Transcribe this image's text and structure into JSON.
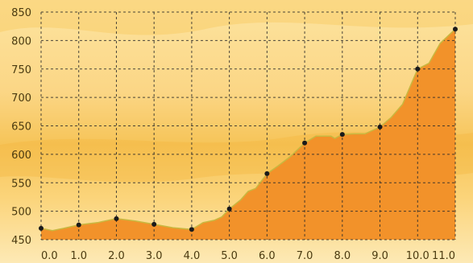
{
  "chart_data": {
    "type": "area",
    "title": "",
    "xlabel": "",
    "ylabel": "",
    "x_ticks": [
      "0.0",
      "1.0",
      "2.0",
      "3.0",
      "4.0",
      "5.0",
      "6.0",
      "7.0",
      "8.0",
      "9.0",
      "10.0",
      "11.0"
    ],
    "y_ticks": [
      "450",
      "500",
      "550",
      "600",
      "650",
      "700",
      "750",
      "800",
      "850"
    ],
    "xlim": [
      0,
      11
    ],
    "ylim": [
      450,
      850
    ],
    "grid": true,
    "legend": "none",
    "profile": [
      {
        "x": 0.0,
        "y": 470
      },
      {
        "x": 0.3,
        "y": 466
      },
      {
        "x": 0.6,
        "y": 470
      },
      {
        "x": 1.0,
        "y": 476
      },
      {
        "x": 1.5,
        "y": 480
      },
      {
        "x": 2.0,
        "y": 487
      },
      {
        "x": 2.5,
        "y": 483
      },
      {
        "x": 3.0,
        "y": 477
      },
      {
        "x": 3.5,
        "y": 471
      },
      {
        "x": 4.0,
        "y": 468
      },
      {
        "x": 4.3,
        "y": 480
      },
      {
        "x": 4.6,
        "y": 484
      },
      {
        "x": 4.8,
        "y": 490
      },
      {
        "x": 5.0,
        "y": 504
      },
      {
        "x": 5.3,
        "y": 520
      },
      {
        "x": 5.5,
        "y": 535
      },
      {
        "x": 5.7,
        "y": 540
      },
      {
        "x": 6.0,
        "y": 566
      },
      {
        "x": 6.3,
        "y": 580
      },
      {
        "x": 6.6,
        "y": 595
      },
      {
        "x": 7.0,
        "y": 620
      },
      {
        "x": 7.3,
        "y": 632
      },
      {
        "x": 7.7,
        "y": 632
      },
      {
        "x": 7.8,
        "y": 628
      },
      {
        "x": 8.0,
        "y": 635
      },
      {
        "x": 8.3,
        "y": 636
      },
      {
        "x": 8.6,
        "y": 636
      },
      {
        "x": 9.0,
        "y": 648
      },
      {
        "x": 9.3,
        "y": 665
      },
      {
        "x": 9.6,
        "y": 688
      },
      {
        "x": 10.0,
        "y": 750
      },
      {
        "x": 10.3,
        "y": 760
      },
      {
        "x": 10.6,
        "y": 795
      },
      {
        "x": 11.0,
        "y": 820
      }
    ],
    "markers": [
      {
        "x": 0,
        "y": 470
      },
      {
        "x": 1,
        "y": 476
      },
      {
        "x": 2,
        "y": 487
      },
      {
        "x": 3,
        "y": 477
      },
      {
        "x": 4,
        "y": 468
      },
      {
        "x": 5,
        "y": 504
      },
      {
        "x": 6,
        "y": 566
      },
      {
        "x": 7,
        "y": 620
      },
      {
        "x": 8,
        "y": 635
      },
      {
        "x": 9,
        "y": 648
      },
      {
        "x": 10,
        "y": 750
      },
      {
        "x": 11,
        "y": 820
      }
    ],
    "colors": {
      "fill": "#f2922a",
      "line": "#c8b840",
      "marker": "#1a1a1a",
      "grid": "#2b2b2b",
      "background_top": "#fde7a8",
      "background_band": "#f7c85e",
      "tick_text": "#4a3a10"
    }
  }
}
